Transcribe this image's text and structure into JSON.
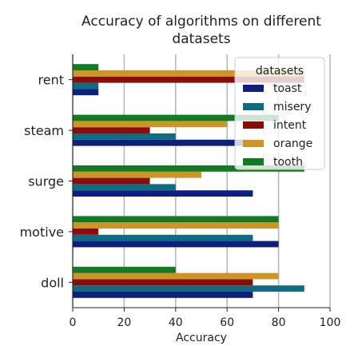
{
  "chart_data": {
    "type": "bar",
    "orientation": "horizontal",
    "title_lines": [
      "Accuracy of algorithms on different",
      "datasets"
    ],
    "xlabel": "Accuracy",
    "ylabel": "",
    "xlim": [
      0,
      100
    ],
    "xticks": [
      "0",
      "20",
      "40",
      "60",
      "80",
      "100"
    ],
    "categories": [
      "rent",
      "steam",
      "surge",
      "motive",
      "doll"
    ],
    "legend_title": "datasets",
    "legend_position": "top-right",
    "grid": "vertical",
    "series": [
      {
        "name": "toast",
        "color": "#0d1f80",
        "values": [
          10,
          70,
          70,
          80,
          70
        ]
      },
      {
        "name": "misery",
        "color": "#0f6b80",
        "values": [
          10,
          40,
          40,
          70,
          90
        ]
      },
      {
        "name": "intent",
        "color": "#8a0c0c",
        "values": [
          90,
          30,
          30,
          10,
          70
        ]
      },
      {
        "name": "orange",
        "color": "#cc9526",
        "values": [
          90,
          60,
          50,
          80,
          80
        ]
      },
      {
        "name": "tooth",
        "color": "#127a22",
        "values": [
          10,
          80,
          90,
          80,
          40
        ]
      }
    ]
  }
}
